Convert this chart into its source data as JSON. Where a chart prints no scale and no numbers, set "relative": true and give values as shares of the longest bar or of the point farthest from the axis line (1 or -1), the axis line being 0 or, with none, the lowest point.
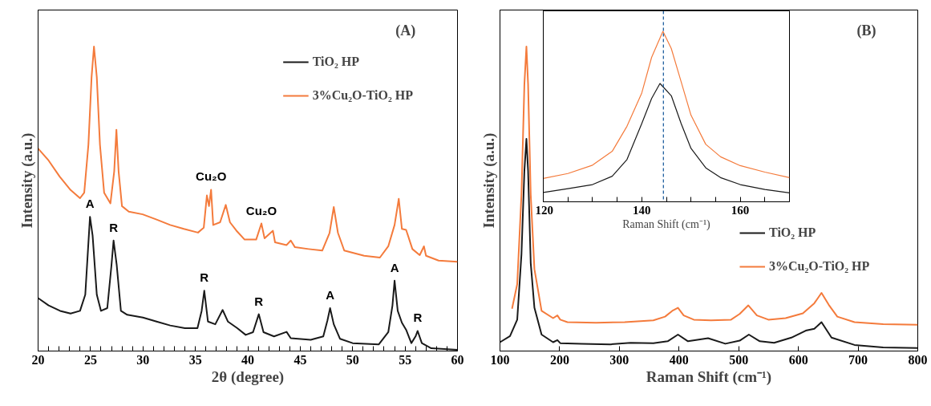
{
  "chart_data": [
    {
      "type": "line",
      "title": "(A)",
      "xlabel": "2θ (degree)",
      "ylabel": "Intensity (a.u.)",
      "relative": true,
      "xlim": [
        20,
        60
      ],
      "xticks": [
        20,
        {
          "value": 21,
          "label": null
        },
        {
          "value": 22,
          "label": null
        },
        {
          "value": 23,
          "label": null
        },
        {
          "value": 24,
          "label": null
        },
        25,
        {
          "value": 26,
          "label": null
        },
        {
          "value": 27,
          "label": null
        },
        {
          "value": 28,
          "label": null
        },
        {
          "value": 29,
          "label": null
        },
        30,
        {
          "value": 31,
          "label": null
        },
        {
          "value": 32,
          "label": null
        },
        {
          "value": 33,
          "label": null
        },
        {
          "value": 34,
          "label": null
        },
        35,
        {
          "value": 36,
          "label": null
        },
        {
          "value": 37,
          "label": null
        },
        {
          "value": 38,
          "label": null
        },
        {
          "value": 39,
          "label": null
        },
        40,
        {
          "value": 41,
          "label": null
        },
        {
          "value": 42,
          "label": null
        },
        {
          "value": 43,
          "label": null
        },
        {
          "value": 44,
          "label": null
        },
        45,
        {
          "value": 46,
          "label": null
        },
        {
          "value": 47,
          "label": null
        },
        {
          "value": 48,
          "label": null
        },
        {
          "value": 49,
          "label": null
        },
        50,
        {
          "value": 51,
          "label": null
        },
        {
          "value": 52,
          "label": null
        },
        {
          "value": 53,
          "label": null
        },
        {
          "value": 54,
          "label": null
        },
        55,
        {
          "value": 56,
          "label": null
        },
        {
          "value": 57,
          "label": null
        },
        {
          "value": 58,
          "label": null
        },
        {
          "value": 59,
          "label": null
        },
        60
      ],
      "legend": "top right",
      "series": [
        {
          "name": "TiO₂ HP",
          "color": "#1a1a1a",
          "x": [
            20,
            21.0,
            22.1,
            23.1,
            24.0,
            24.5,
            24.95,
            25.2,
            25.6,
            26.0,
            26.6,
            27.0,
            27.2,
            27.5,
            27.9,
            28.5,
            30.0,
            31.3,
            32.6,
            34.0,
            35.2,
            35.6,
            35.85,
            36.2,
            36.9,
            37.6,
            38.1,
            39.0,
            39.8,
            40.5,
            41.05,
            41.5,
            42.5,
            43.7,
            44.1,
            46.0,
            47.2,
            47.6,
            47.85,
            48.2,
            48.8,
            50,
            52.5,
            53.4,
            53.8,
            54.0,
            54.3,
            54.7,
            55.1,
            55.6,
            56.0,
            56.2,
            56.6,
            57.5,
            60
          ],
          "values": [
            0.174,
            0.15,
            0.132,
            0.123,
            0.132,
            0.185,
            0.441,
            0.379,
            0.185,
            0.132,
            0.141,
            0.282,
            0.363,
            0.282,
            0.132,
            0.119,
            0.11,
            0.097,
            0.084,
            0.075,
            0.075,
            0.132,
            0.198,
            0.097,
            0.088,
            0.135,
            0.097,
            0.075,
            0.053,
            0.062,
            0.121,
            0.062,
            0.048,
            0.063,
            0.042,
            0.037,
            0.048,
            0.101,
            0.141,
            0.088,
            0.04,
            0.026,
            0.022,
            0.062,
            0.15,
            0.231,
            0.132,
            0.093,
            0.07,
            0.026,
            0.048,
            0.066,
            0.026,
            0.009,
            0.004
          ]
        },
        {
          "name": "3%Cu₂O-TiO₂ HP",
          "color": "#f47b3c",
          "x": [
            20,
            21.0,
            22.06,
            23.1,
            24.0,
            24.4,
            24.8,
            25.1,
            25.33,
            25.6,
            25.9,
            26.3,
            26.9,
            27.26,
            27.47,
            27.68,
            28.0,
            28.65,
            29.97,
            31.3,
            32.6,
            33.9,
            35.25,
            35.8,
            36.1,
            36.3,
            36.5,
            36.7,
            37.36,
            37.9,
            38.3,
            38.9,
            39.7,
            40.8,
            41.3,
            41.6,
            42.4,
            42.6,
            43.7,
            44.1,
            44.5,
            45.8,
            47.1,
            47.8,
            48.2,
            48.6,
            49.2,
            51.1,
            52.6,
            53.4,
            54.0,
            54.4,
            54.7,
            55.1,
            55.7,
            56.4,
            56.8,
            57.0,
            58.2,
            60
          ],
          "values": [
            0.665,
            0.626,
            0.573,
            0.529,
            0.502,
            0.52,
            0.678,
            0.899,
            1.0,
            0.899,
            0.678,
            0.52,
            0.485,
            0.59,
            0.727,
            0.59,
            0.476,
            0.458,
            0.449,
            0.432,
            0.414,
            0.401,
            0.389,
            0.405,
            0.511,
            0.476,
            0.53,
            0.414,
            0.423,
            0.48,
            0.423,
            0.396,
            0.366,
            0.366,
            0.419,
            0.37,
            0.395,
            0.357,
            0.348,
            0.363,
            0.341,
            0.335,
            0.33,
            0.388,
            0.473,
            0.388,
            0.33,
            0.313,
            0.307,
            0.344,
            0.414,
            0.5,
            0.401,
            0.398,
            0.335,
            0.315,
            0.344,
            0.313,
            0.297,
            0.293
          ]
        }
      ],
      "annotations": [
        {
          "text": "A",
          "x": 24.95,
          "y": 0.441
        },
        {
          "text": "R",
          "x": 27.2,
          "y": 0.363
        },
        {
          "text": "Cu₂O",
          "x": 36.5,
          "y": 0.53
        },
        {
          "text": "Cu₂O",
          "x": 41.3,
          "y": 0.419
        },
        {
          "text": "R",
          "x": 35.85,
          "y": 0.198
        },
        {
          "text": "R",
          "x": 41.05,
          "y": 0.121
        },
        {
          "text": "A",
          "x": 47.85,
          "y": 0.141
        },
        {
          "text": "A",
          "x": 54.0,
          "y": 0.231
        },
        {
          "text": "R",
          "x": 56.2,
          "y": 0.066
        }
      ]
    },
    {
      "type": "line",
      "title": "(B)",
      "xlabel": "Raman Shift (cm⁻¹)",
      "ylabel": "Intensity (a.u.)",
      "relative": true,
      "xlim": [
        100,
        800
      ],
      "xticks": [
        100,
        200,
        300,
        400,
        500,
        600,
        700,
        800
      ],
      "legend": "right",
      "series": [
        {
          "name": "TiO₂ HP",
          "color": "#1a1a1a",
          "x": [
            100,
            116.8,
            128.9,
            136,
            140.9,
            144.3,
            147.1,
            151.5,
            157.7,
            169.7,
            189,
            196.2,
            201,
            237,
            285,
            318.9,
            357,
            381,
            398.2,
            415,
            448.7,
            477.6,
            501.6,
            517,
            535.3,
            559.3,
            588.2,
            612.3,
            626.7,
            638.7,
            655.5,
            694,
            742,
            800
          ],
          "values": [
            0.029,
            0.049,
            0.103,
            0.318,
            0.592,
            0.697,
            0.592,
            0.289,
            0.142,
            0.054,
            0.029,
            0.036,
            0.026,
            0.024,
            0.022,
            0.027,
            0.026,
            0.032,
            0.054,
            0.032,
            0.042,
            0.024,
            0.034,
            0.054,
            0.032,
            0.027,
            0.044,
            0.067,
            0.073,
            0.095,
            0.044,
            0.02,
            0.012,
            0.01
          ]
        },
        {
          "name": "3%Cu₂O-TiO₂ HP",
          "color": "#f47b3c",
          "x": [
            120.2,
            128.9,
            136,
            140.9,
            144.3,
            147.1,
            151.5,
            157.7,
            169.7,
            189,
            196.2,
            201,
            213,
            261,
            309,
            357,
            376.6,
            388.6,
            398.2,
            407.8,
            424.7,
            453.5,
            487.2,
            501.6,
            516.1,
            530.5,
            549.7,
            578.6,
            607.5,
            626.7,
            638.7,
            650.8,
            665.2,
            694,
            742,
            800
          ],
          "values": [
            0.139,
            0.22,
            0.514,
            0.876,
            1.0,
            0.876,
            0.514,
            0.269,
            0.132,
            0.108,
            0.117,
            0.103,
            0.095,
            0.093,
            0.095,
            0.101,
            0.113,
            0.132,
            0.142,
            0.117,
            0.103,
            0.101,
            0.103,
            0.122,
            0.15,
            0.117,
            0.103,
            0.108,
            0.124,
            0.157,
            0.191,
            0.152,
            0.113,
            0.095,
            0.088,
            0.086
          ]
        }
      ]
    },
    {
      "type": "line",
      "xlabel": "Raman Shift (cm⁻¹)",
      "relative": true,
      "xlim": [
        120,
        170
      ],
      "xticks": [
        120,
        {
          "value": 125,
          "label": null
        },
        {
          "value": 130,
          "label": null
        },
        {
          "value": 135,
          "label": null
        },
        140,
        {
          "value": 145,
          "label": null
        },
        {
          "value": 150,
          "label": null
        },
        {
          "value": 155,
          "label": null
        },
        160,
        {
          "value": 165,
          "label": null
        }
      ],
      "ref_lines": [
        {
          "axis": "x",
          "value": 144.4,
          "color": "#1f5f9f",
          "line_style": "dashed"
        }
      ],
      "series": [
        {
          "color": "#1a1a1a",
          "x": [
            120,
            125,
            130,
            134,
            137,
            140,
            142,
            143.7,
            146,
            148,
            150,
            153,
            156,
            160,
            165,
            170
          ],
          "values": [
            0.055,
            0.077,
            0.101,
            0.15,
            0.248,
            0.459,
            0.606,
            0.694,
            0.622,
            0.459,
            0.313,
            0.199,
            0.142,
            0.101,
            0.072,
            0.052
          ]
        },
        {
          "color": "#f47b3c",
          "x": [
            120,
            125,
            130,
            134,
            137,
            140,
            142,
            144.3,
            146,
            148,
            150,
            153,
            156,
            160,
            165,
            170
          ],
          "values": [
            0.137,
            0.166,
            0.215,
            0.296,
            0.443,
            0.638,
            0.847,
            1.0,
            0.899,
            0.704,
            0.508,
            0.337,
            0.264,
            0.212,
            0.174,
            0.142
          ]
        }
      ]
    }
  ]
}
